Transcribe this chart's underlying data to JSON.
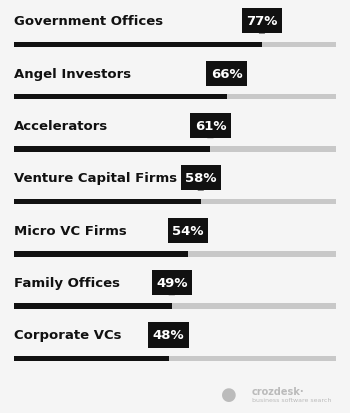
{
  "categories": [
    "Government Offices",
    "Angel Investors",
    "Accelerators",
    "Venture Capital Firms",
    "Micro VC Firms",
    "Family Offices",
    "Corporate VCs"
  ],
  "values": [
    77,
    66,
    61,
    58,
    54,
    49,
    48
  ],
  "max_value": 100,
  "bar_color": "#111111",
  "bar_bg_color": "#c8c8c8",
  "label_color": "#ffffff",
  "text_color": "#111111",
  "bg_color": "#f5f5f5",
  "label_fontsize": 9.5,
  "category_fontsize": 9.5,
  "watermark_color": "#bbbbbb"
}
